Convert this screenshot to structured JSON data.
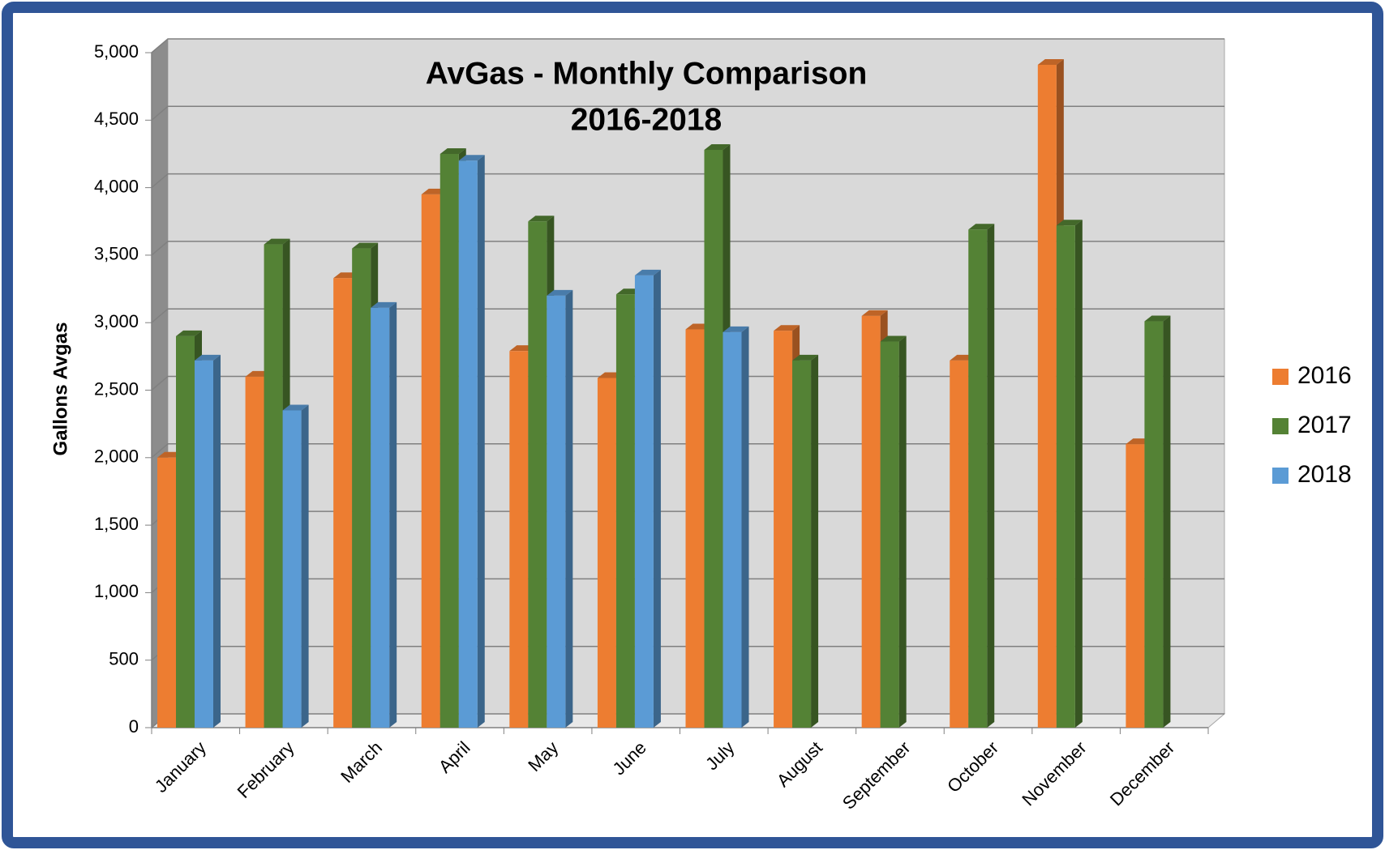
{
  "chart_data": {
    "type": "bar",
    "title": "AvGas - Monthly Comparison",
    "subtitle": "2016-2018",
    "y_label": "Gallons Avgas",
    "categories": [
      "January",
      "February",
      "March",
      "April",
      "May",
      "June",
      "July",
      "August",
      "September",
      "October",
      "November",
      "December"
    ],
    "series": [
      {
        "name": "2016",
        "color": "#ed7d31",
        "values": [
          2000,
          2600,
          3330,
          3950,
          2790,
          2590,
          2950,
          2940,
          3050,
          2720,
          4910,
          2100
        ]
      },
      {
        "name": "2017",
        "color": "#548235",
        "values": [
          2900,
          3580,
          3550,
          4250,
          3750,
          3210,
          4280,
          2720,
          2860,
          3690,
          3720,
          3010
        ]
      },
      {
        "name": "2018",
        "color": "#5b9bd5",
        "values": [
          2720,
          2350,
          3110,
          4200,
          3200,
          3350,
          2930,
          null,
          null,
          null,
          null,
          null
        ]
      }
    ],
    "ylim": [
      0,
      5000
    ],
    "yticks": [
      0,
      500,
      {
        "value": 1000,
        "label": "1,000"
      },
      {
        "value": 1500,
        "label": "1,500"
      },
      {
        "value": 2000,
        "label": "2,000"
      },
      {
        "value": 2500,
        "label": "2,500"
      },
      {
        "value": 3000,
        "label": "3,000"
      },
      {
        "value": 3500,
        "label": "3,500"
      },
      {
        "value": 4000,
        "label": "4,000"
      },
      {
        "value": 4500,
        "label": "4,500"
      },
      {
        "value": 5000,
        "label": "5,000"
      }
    ],
    "grid": true,
    "legend": "right"
  }
}
